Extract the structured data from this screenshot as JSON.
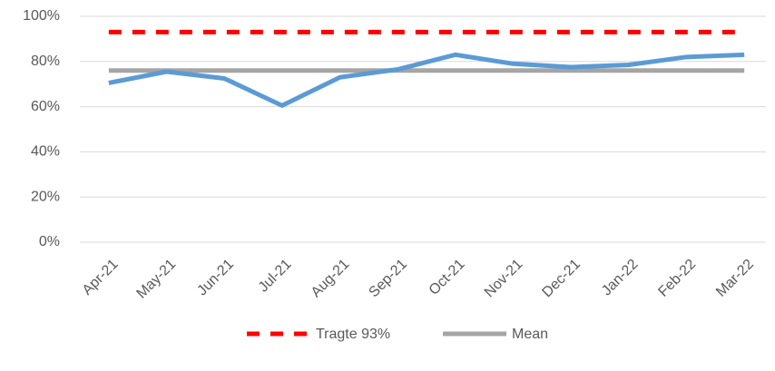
{
  "chart_data": {
    "type": "line",
    "categories": [
      "Apr-21",
      "May-21",
      "Jun-21",
      "Jul-21",
      "Aug-21",
      "Sep-21",
      "Oct-21",
      "Nov-21",
      "Dec-21",
      "Jan-22",
      "Feb-22",
      "Mar-22"
    ],
    "series": [
      {
        "color": "#5b9bd5",
        "values": [
          70.5,
          75.5,
          72.5,
          60.5,
          73,
          76.5,
          83,
          79,
          77.5,
          78.5,
          82,
          83
        ]
      },
      {
        "name": "Tragte 93%",
        "color": "#ff0000",
        "dashed": true,
        "values": [
          93,
          93,
          93,
          93,
          93,
          93,
          93,
          93,
          93,
          93,
          93,
          93
        ]
      },
      {
        "name": "Mean",
        "color": "#a5a5a5",
        "values": [
          76,
          76,
          76,
          76,
          76,
          76,
          76,
          76,
          76,
          76,
          76,
          76
        ]
      }
    ],
    "ylim": [
      0,
      100
    ],
    "yticks": [
      {
        "value": 0,
        "label": "0%"
      },
      {
        "value": 20,
        "label": "20%"
      },
      {
        "value": 40,
        "label": "40%"
      },
      {
        "value": 60,
        "label": "60%"
      },
      {
        "value": 80,
        "label": "80%"
      },
      {
        "value": 100,
        "label": "100%"
      }
    ],
    "grid": true,
    "legend": "bottom"
  }
}
